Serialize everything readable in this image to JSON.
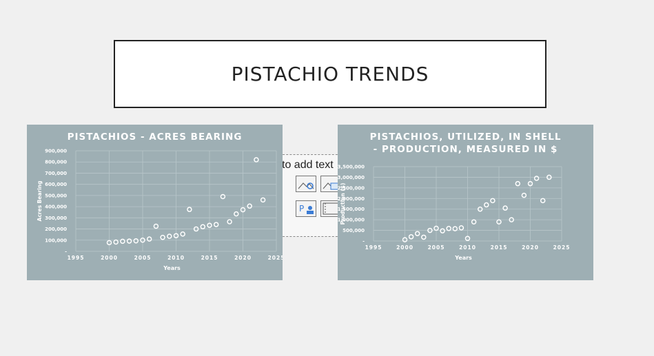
{
  "slide": {
    "title": "PISTACHIO TRENDS",
    "placeholder_text": "to add text",
    "placeholder_icons": [
      "picture-search-icon",
      "stock-image-icon",
      "icon-insert-icon",
      "video-icon"
    ]
  },
  "colors": {
    "chart_bg": "#9eafb4",
    "marker": "#ffffff",
    "grid": "#b8c6ca",
    "text": "#ffffff"
  },
  "chart_data": [
    {
      "type": "scatter",
      "title": "PISTACHIOS - ACRES BEARING",
      "xlabel": "Years",
      "ylabel": "Acres Bearing",
      "xlim": [
        1995,
        2025
      ],
      "ylim": [
        0,
        900000
      ],
      "xticks": [
        "1995",
        "2000",
        "2005",
        "2010",
        "2015",
        "2020",
        "2025"
      ],
      "yticks": [
        "-",
        "100,000",
        "200,000",
        "300,000",
        "400,000",
        "500,000",
        "600,000",
        "700,000",
        "800,000",
        "900,000"
      ],
      "x": [
        2000,
        2001,
        2002,
        2003,
        2004,
        2005,
        2006,
        2007,
        2008,
        2009,
        2010,
        2011,
        2012,
        2013,
        2014,
        2015,
        2016,
        2017,
        2018,
        2019,
        2020,
        2021,
        2022,
        2023
      ],
      "y": [
        78000,
        83000,
        90000,
        92000,
        94000,
        100000,
        110000,
        225000,
        125000,
        135000,
        140000,
        155000,
        375000,
        200000,
        220000,
        233000,
        240000,
        490000,
        265000,
        335000,
        372000,
        405000,
        820000,
        460000
      ]
    },
    {
      "type": "scatter",
      "title": "PISTACHIOS, UTILIZED, IN SHELL - PRODUCTION, MEASURED IN $",
      "xlabel": "Years",
      "ylabel": "Production ($)",
      "xlim": [
        1995,
        2025
      ],
      "ylim": [
        0,
        3500000
      ],
      "xticks": [
        "1995",
        "2000",
        "2005",
        "2010",
        "2015",
        "2020",
        "2025"
      ],
      "yticks": [
        "-",
        "500,000",
        "1,000,000",
        "1,500,000",
        "2,000,000",
        "2,500,000",
        "3,000,000",
        "3,500,000"
      ],
      "x": [
        2000,
        2001,
        2002,
        2003,
        2004,
        2005,
        2006,
        2007,
        2008,
        2009,
        2010,
        2011,
        2012,
        2013,
        2014,
        2015,
        2016,
        2017,
        2018,
        2019,
        2020,
        2021,
        2022,
        2023
      ],
      "y": [
        60000,
        200000,
        350000,
        180000,
        500000,
        600000,
        480000,
        590000,
        580000,
        620000,
        120000,
        900000,
        1500000,
        1700000,
        1900000,
        900000,
        1550000,
        1000000,
        2700000,
        2150000,
        2700000,
        2950000,
        1900000,
        3000000
      ]
    }
  ]
}
